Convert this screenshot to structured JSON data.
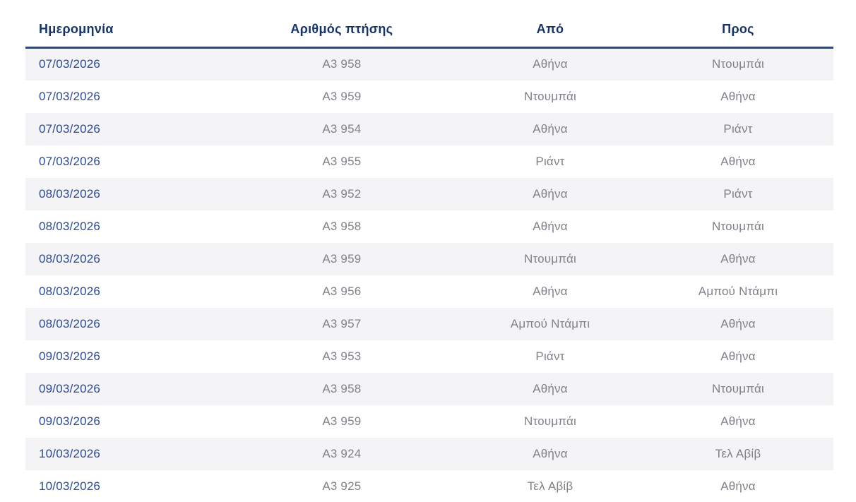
{
  "table": {
    "columns": [
      {
        "key": "date",
        "label": "Ημερομηνία"
      },
      {
        "key": "flight_number",
        "label": "Αριθμός πτήσης"
      },
      {
        "key": "from",
        "label": "Από"
      },
      {
        "key": "to",
        "label": "Προς"
      }
    ],
    "rows": [
      {
        "date": "07/03/2026",
        "flight_number": "A3 958",
        "from": "Αθήνα",
        "to": "Ντουμπάι"
      },
      {
        "date": "07/03/2026",
        "flight_number": "A3 959",
        "from": "Ντουμπάι",
        "to": "Αθήνα"
      },
      {
        "date": "07/03/2026",
        "flight_number": "A3 954",
        "from": "Αθήνα",
        "to": "Ριάντ"
      },
      {
        "date": "07/03/2026",
        "flight_number": "A3 955",
        "from": "Ριάντ",
        "to": "Αθήνα"
      },
      {
        "date": "08/03/2026",
        "flight_number": "A3 952",
        "from": "Αθήνα",
        "to": "Ριάντ"
      },
      {
        "date": "08/03/2026",
        "flight_number": "A3 958",
        "from": "Αθήνα",
        "to": "Ντουμπάι"
      },
      {
        "date": "08/03/2026",
        "flight_number": "A3 959",
        "from": "Ντουμπάι",
        "to": "Αθήνα"
      },
      {
        "date": "08/03/2026",
        "flight_number": "A3 956",
        "from": "Αθήνα",
        "to": "Αμπού Ντάμπι"
      },
      {
        "date": "08/03/2026",
        "flight_number": "A3 957",
        "from": "Αμπού Ντάμπι",
        "to": "Αθήνα"
      },
      {
        "date": "09/03/2026",
        "flight_number": "A3 953",
        "from": "Ριάντ",
        "to": "Αθήνα"
      },
      {
        "date": "09/03/2026",
        "flight_number": "A3 958",
        "from": "Αθήνα",
        "to": "Ντουμπάι"
      },
      {
        "date": "09/03/2026",
        "flight_number": "A3 959",
        "from": "Ντουμπάι",
        "to": "Αθήνα"
      },
      {
        "date": "10/03/2026",
        "flight_number": "A3 924",
        "from": "Αθήνα",
        "to": "Τελ Αβίβ"
      },
      {
        "date": "10/03/2026",
        "flight_number": "A3 925",
        "from": "Τελ Αβίβ",
        "to": "Αθήνα"
      }
    ]
  },
  "colors": {
    "header_text": "#16336a",
    "header_border": "#33486e",
    "date_text": "#2a4a94",
    "cell_text": "#80808a",
    "row_alt_bg": "#f4f4f6",
    "row_bg": "#ffffff"
  }
}
